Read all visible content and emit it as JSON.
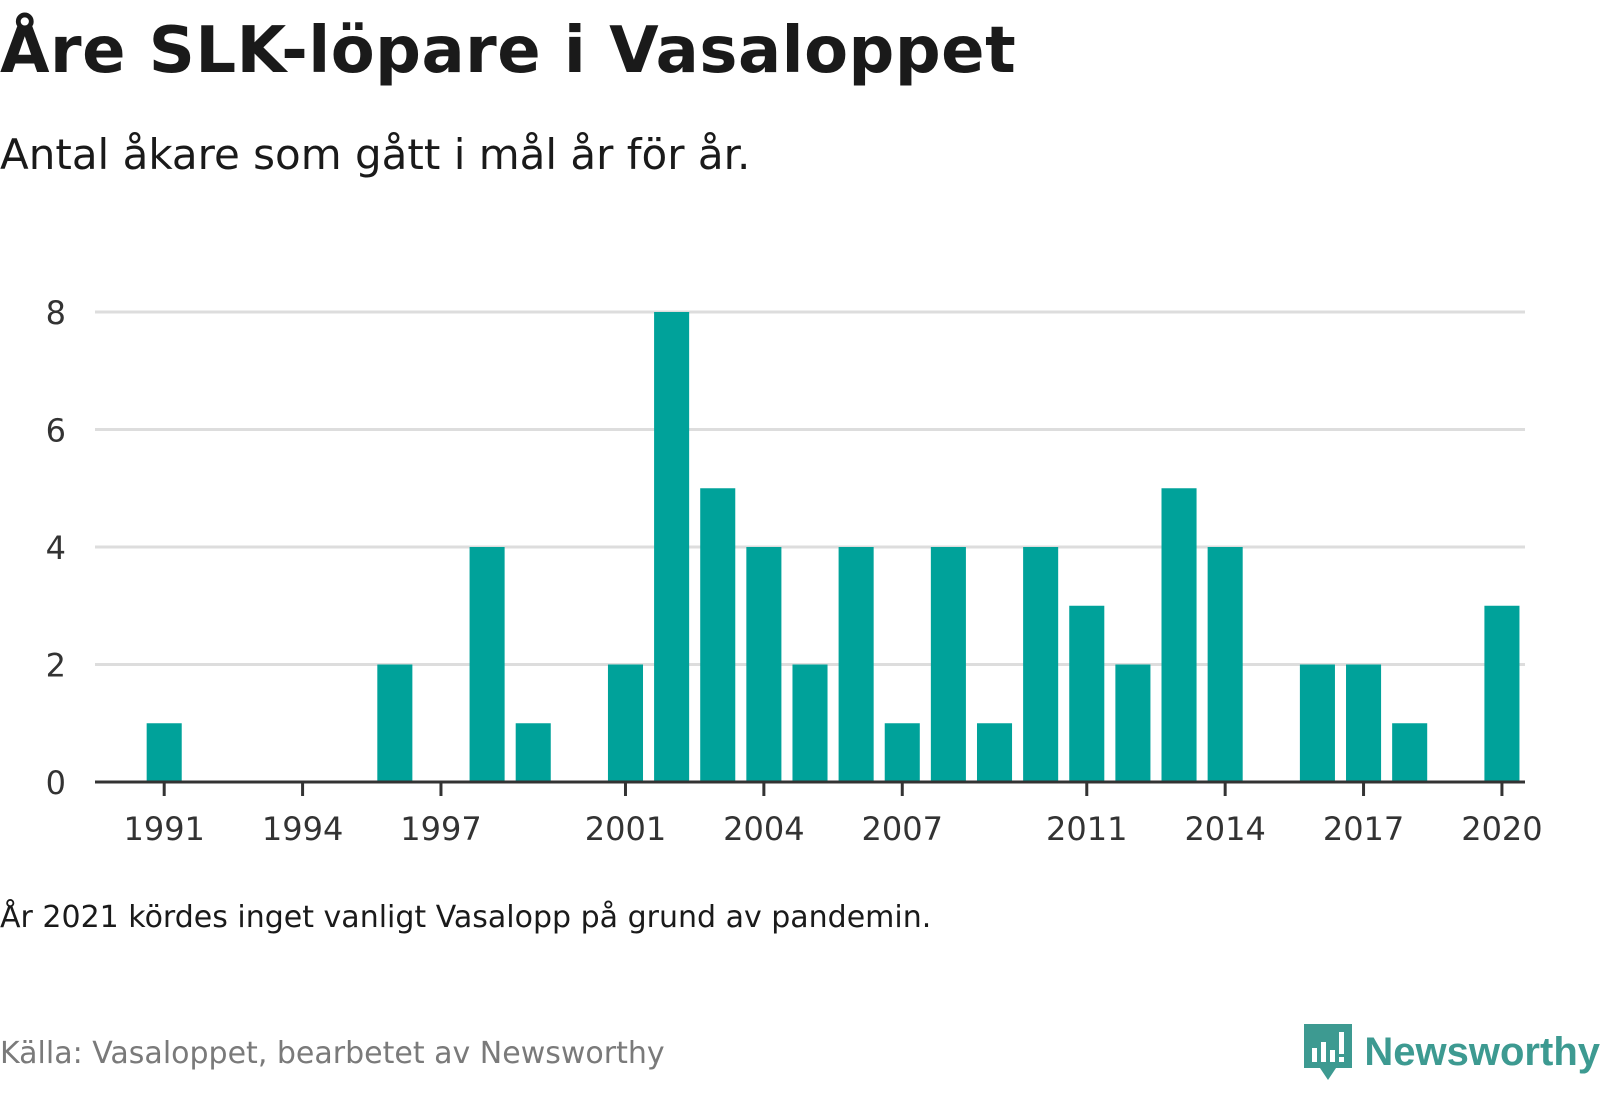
{
  "title": "Åre SLK-löpare i Vasaloppet",
  "subtitle": "Antal åkare som gått i mål år för år.",
  "note": "År 2021 kördes inget vanligt Vasalopp på grund av pandemin.",
  "source": "Källa: Vasaloppet, bearbetet av Newsworthy",
  "brand": {
    "name": "Newsworthy",
    "icon": "newsworthy-logo-icon",
    "color": "#3d9a91"
  },
  "colors": {
    "bar": "#00a29a",
    "grid": "#dddddd",
    "axis": "#333333"
  },
  "chart_data": {
    "type": "bar",
    "categories": [
      "1990",
      "1991",
      "1992",
      "1993",
      "1994",
      "1995",
      "1996",
      "1997",
      "1998",
      "1999",
      "2000",
      "2001",
      "2002",
      "2003",
      "2004",
      "2005",
      "2006",
      "2007",
      "2008",
      "2009",
      "2010",
      "2011",
      "2012",
      "2013",
      "2014",
      "2015",
      "2016",
      "2017",
      "2018",
      "2019",
      "2020"
    ],
    "values": [
      0,
      1,
      0,
      0,
      0,
      0,
      2,
      0,
      4,
      1,
      0,
      2,
      8,
      5,
      4,
      2,
      4,
      1,
      4,
      1,
      4,
      3,
      2,
      5,
      4,
      0,
      2,
      2,
      1,
      0,
      3
    ],
    "x_tick_labels": [
      "1991",
      "1994",
      "1997",
      "2001",
      "2004",
      "2007",
      "2011",
      "2014",
      "2017",
      "2020"
    ],
    "y_ticks": [
      0,
      2,
      4,
      6,
      8
    ],
    "ylim": [
      0,
      8
    ],
    "xlabel": "",
    "ylabel": "",
    "grid": true,
    "legend": "none"
  }
}
